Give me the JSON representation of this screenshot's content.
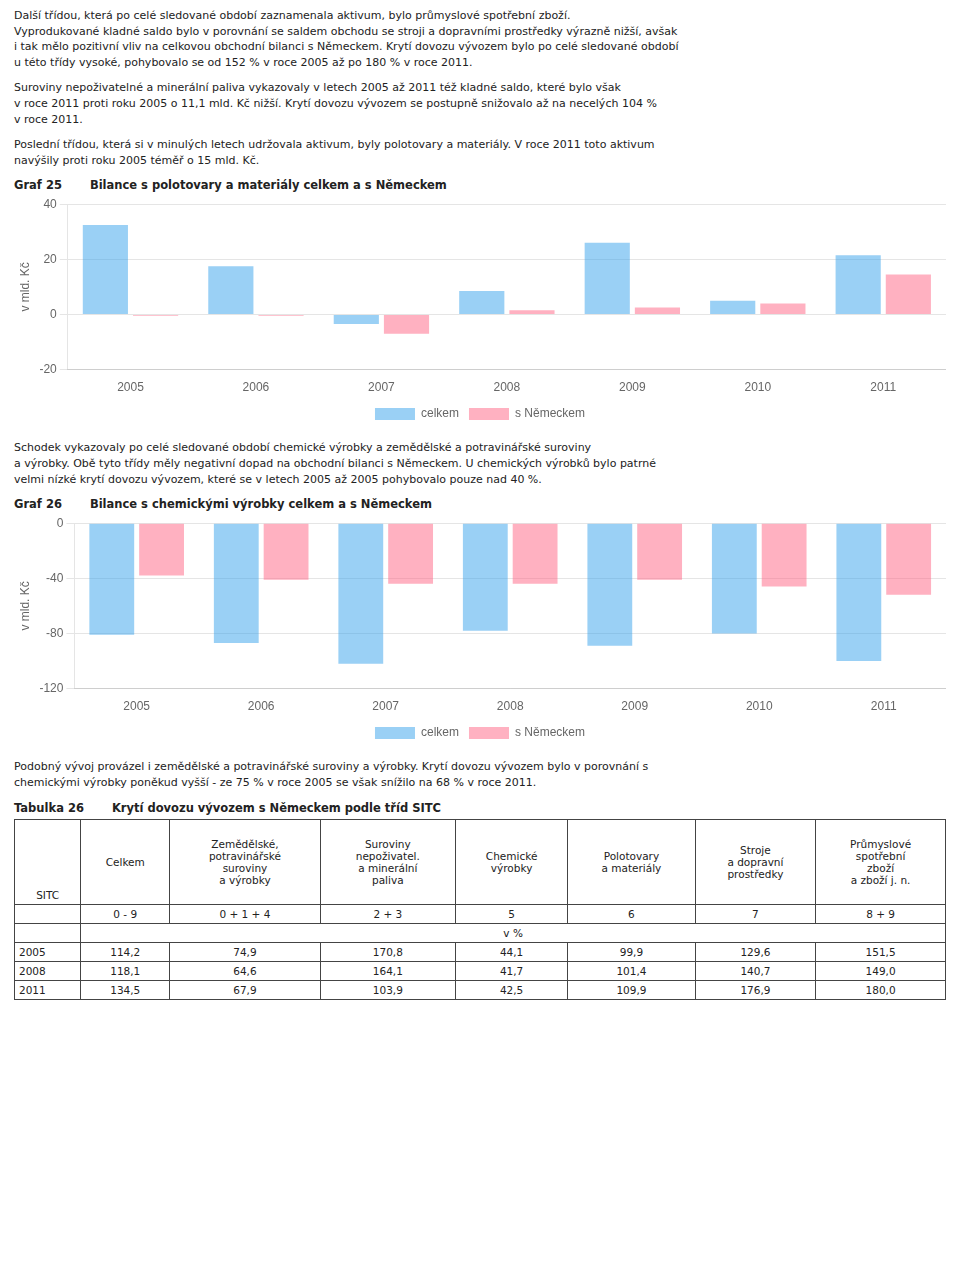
{
  "paragraphs": [
    "Další třídou, která po celé sledované období zaznamenala aktivum, bylo průmyslové spotřební zboží.\nVyprodukované kladné saldo bylo v porovnání se saldem obchodu se stroji a dopravními prostředky výrazně nižší, avšak\ni tak mělo pozitivní vliv na celkovou obchodní bilanci s Německem. Krytí dovozu vývozem bylo po celé sledované období\nu této třídy vysoké, pohybovalo se od 152 % v roce 2005 až po 180 % v roce 2011.",
    "Suroviny nepoživatelné a minerální paliva vykazovaly v letech 2005 až 2011 též kladné saldo, které bylo však\nv roce 2011 proti roku 2005 o 11,1 mld. Kč nižší. Krytí dovozu vývozem se postupně snižovalo až na necelých 104 %\nv roce 2011.",
    "Poslední třídou, která si v minulých letech udržovala aktivum, byly polotovary a materiály. V roce 2011 toto aktivum\nnavýšily proti roku 2005 téměř o 15 mld. Kč.",
    "Schodek vykazovaly po celé sledované období chemické výrobky a zemědělské a potravinářské suroviny\na výrobky. Obě tyto třídy měly negativní dopad na obchodní bilanci s Německem. U chemických výrobků bylo patrné\nvelmi nízké krytí dovozu vývozem, které se v letech 2005 až 2005 pohybovalo pouze nad 40 %.",
    "Podobný vývoj provázel i zemědělské a potravinářské suroviny a výrobky. Krytí dovozu vývozem bylo v porovnání s\nchemickými výrobky poněkud vyšší - ze 75 % v roce 2005 se však snížilo na 68 % v roce 2011."
  ],
  "chart_data": [
    {
      "type": "bar",
      "subtitle": "Graf 25",
      "title": "Bilance s polotovary a materiály celkem a s Německem",
      "categories": [
        "2005",
        "2006",
        "2007",
        "2008",
        "2009",
        "2010",
        "2011"
      ],
      "series": [
        {
          "name": "celkem",
          "values": [
            32.5,
            17.5,
            -3.5,
            8.5,
            26.0,
            5.0,
            21.5
          ]
        },
        {
          "name": "s Německem",
          "values": [
            -0.5,
            -0.5,
            -7.0,
            1.5,
            2.5,
            4.0,
            14.5
          ]
        }
      ],
      "y_label": "v mld. Kč",
      "ylim": [
        -20,
        40
      ],
      "yticks": [
        -20,
        0,
        20,
        40
      ],
      "grid": true,
      "legend": "bottom"
    },
    {
      "type": "bar",
      "subtitle": "Graf 26",
      "title": "Bilance s chemickými výrobky celkem a s Německem",
      "categories": [
        "2005",
        "2006",
        "2007",
        "2008",
        "2009",
        "2010",
        "2011"
      ],
      "series": [
        {
          "name": "celkem",
          "values": [
            -81.0,
            -87.0,
            -102.0,
            -78.0,
            -89.0,
            -80.0,
            -100.0
          ]
        },
        {
          "name": "s Německem",
          "values": [
            -38.0,
            -41.0,
            -44.0,
            -44.0,
            -41.0,
            -46.0,
            -52.0
          ]
        }
      ],
      "y_label": "v mld. Kč",
      "ylim": [
        -120,
        0
      ],
      "yticks": [
        -120,
        -80,
        -40,
        0
      ],
      "grid": true,
      "legend": "bottom"
    }
  ],
  "table": {
    "subtitle": "Tabulka 26",
    "title": "Krytí dovozu vývozem s Německem podle tříd SITC",
    "columns": [
      "SITC",
      "Celkem",
      "Zemědělské,\npotravinářské\nsuroviny\na výrobky",
      "Suroviny\nnepoživatel.\na minerální\npaliva",
      "Chemické\nvýrobky",
      "Polotovary\na materiály",
      "Stroje\na dopravní\nprostředky",
      "Průmyslové\nspotřební\nzboží\na zboží j. n."
    ],
    "codes": [
      "0 - 9",
      "0 + 1 + 4",
      "2 + 3",
      "5",
      "6",
      "7",
      "8 + 9"
    ],
    "unit": "v %",
    "rows": [
      [
        "2005",
        "114,2",
        "74,9",
        "170,8",
        "44,1",
        "99,9",
        "129,6",
        "151,5"
      ],
      [
        "2008",
        "118,1",
        "64,6",
        "164,1",
        "41,7",
        "101,4",
        "140,7",
        "149,0"
      ],
      [
        "2011",
        "134,5",
        "67,9",
        "103,9",
        "42,5",
        "109,9",
        "176,9",
        "180,0"
      ]
    ]
  }
}
